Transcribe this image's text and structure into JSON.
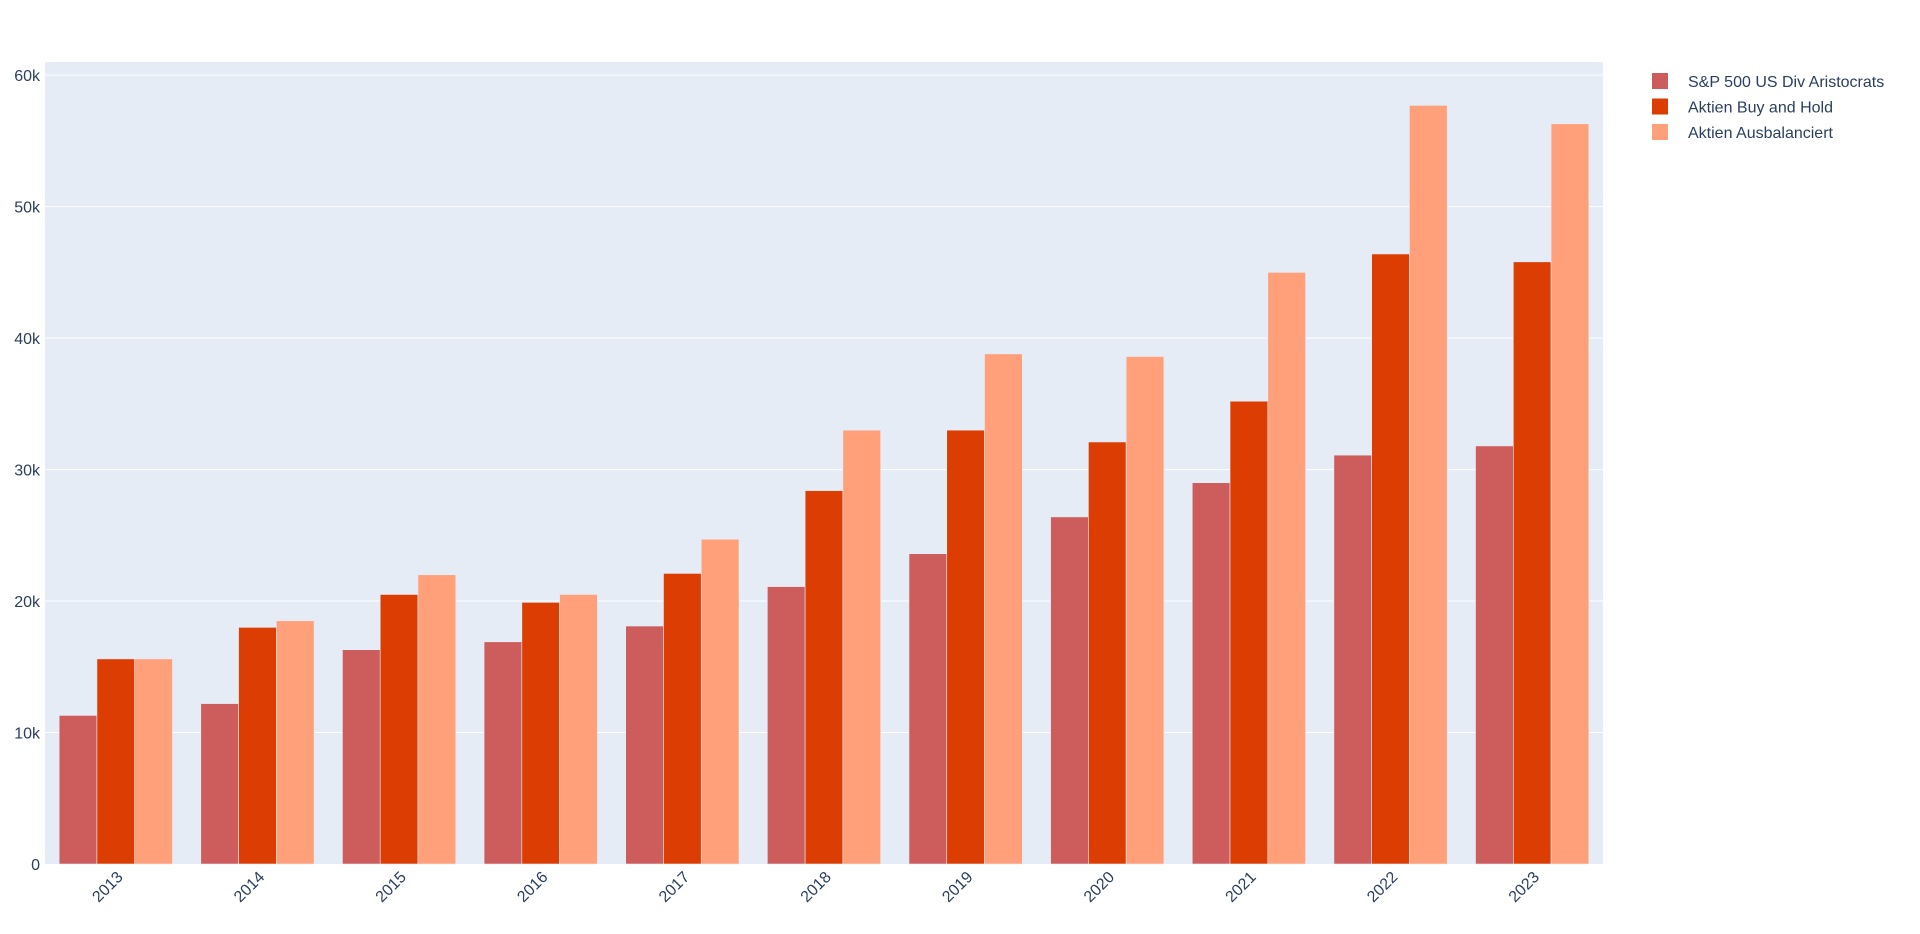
{
  "chart_data": {
    "type": "bar",
    "categories": [
      "2013",
      "2014",
      "2015",
      "2016",
      "2017",
      "2018",
      "2019",
      "2020",
      "2021",
      "2022",
      "2023"
    ],
    "series": [
      {
        "name": "S&P 500 US Div Aristocrats",
        "color": "#cd5c5c",
        "values": [
          11300,
          12200,
          16300,
          16900,
          18100,
          21100,
          23600,
          26400,
          29000,
          31100,
          31800
        ]
      },
      {
        "name": "Aktien Buy and Hold",
        "color": "#dc3d02",
        "values": [
          15600,
          18000,
          20500,
          19900,
          22100,
          28400,
          33000,
          32100,
          35200,
          46400,
          45800
        ]
      },
      {
        "name": "Aktien Ausbalanciert",
        "color": "#ffa07a",
        "values": [
          15600,
          18500,
          22000,
          20500,
          24700,
          33000,
          38800,
          38600,
          45000,
          57700,
          56300
        ]
      }
    ],
    "y_ticks": [
      {
        "value": 0,
        "label": "0"
      },
      {
        "value": 10000,
        "label": "10k"
      },
      {
        "value": 20000,
        "label": "20k"
      },
      {
        "value": 30000,
        "label": "30k"
      },
      {
        "value": 40000,
        "label": "40k"
      },
      {
        "value": 50000,
        "label": "50k"
      },
      {
        "value": 60000,
        "label": "60k"
      }
    ],
    "ylim": [
      0,
      61000
    ],
    "grid": true,
    "legend_position": "top-right",
    "plot_background": "#e5ecf6",
    "grid_color": "#ffffff",
    "text_color": "#2a3f5f"
  }
}
